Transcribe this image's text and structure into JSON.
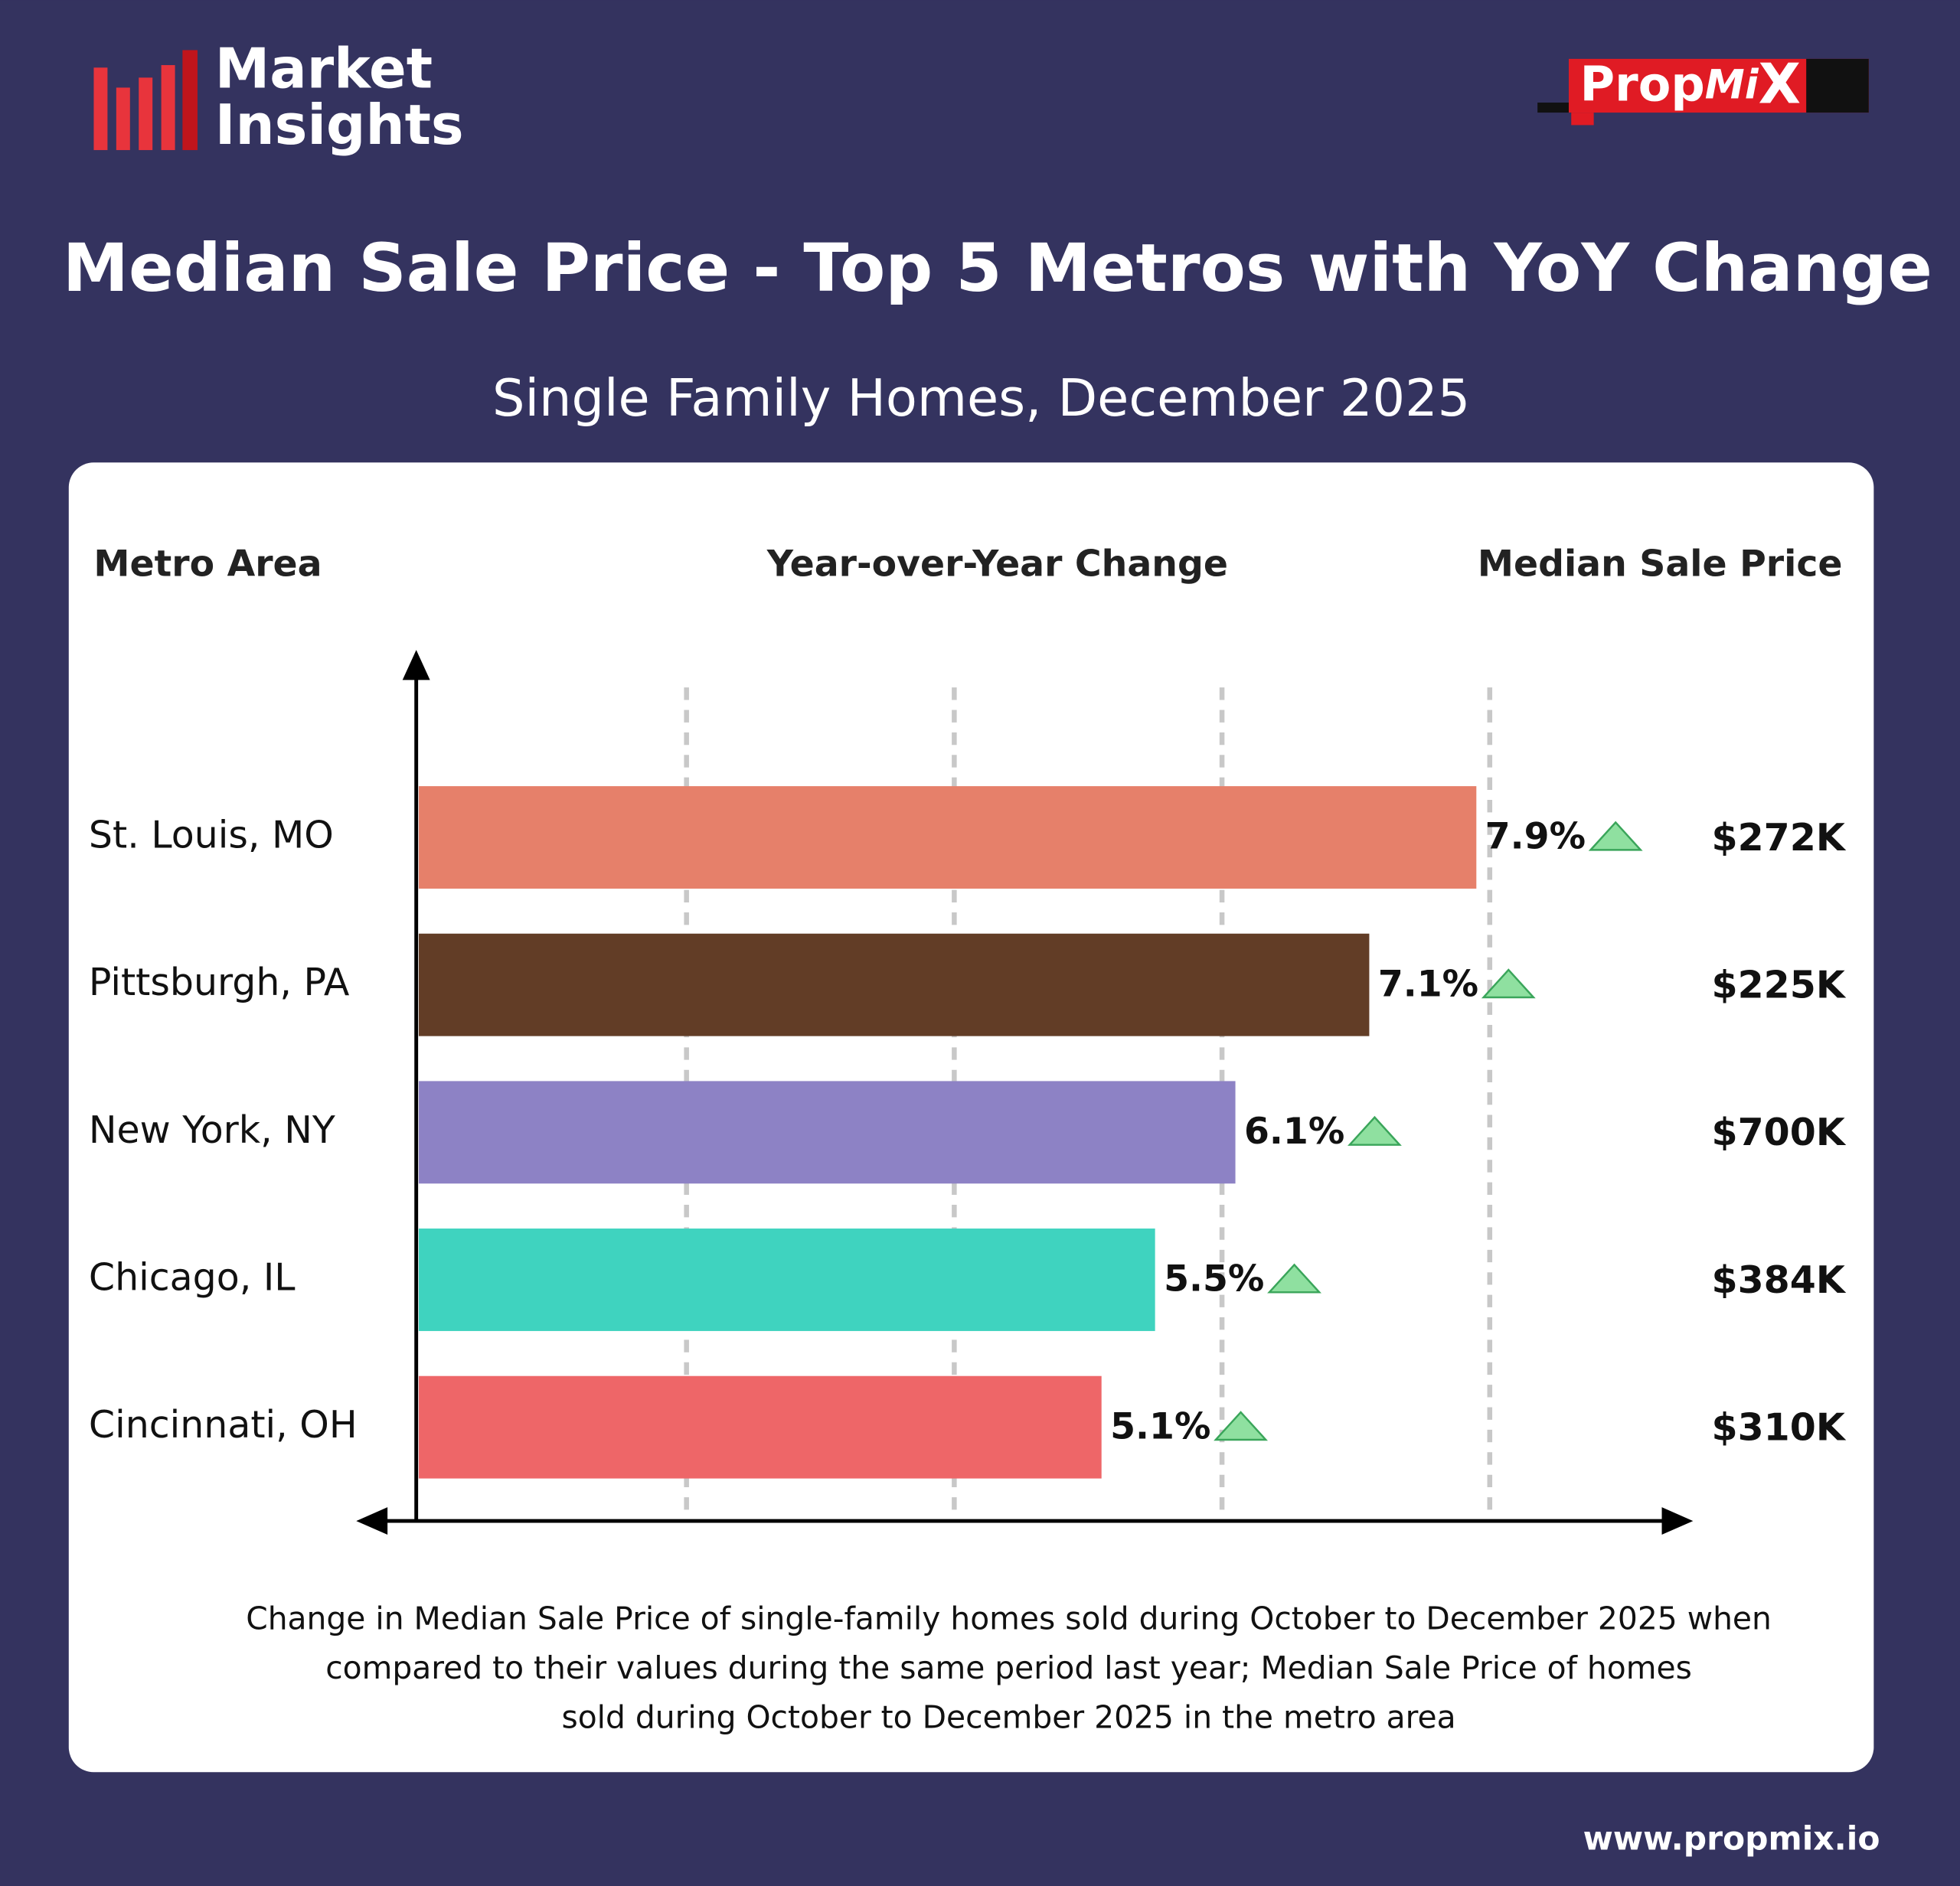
{
  "brand": {
    "title_lines": [
      "Market",
      "Insights"
    ],
    "logo_parts": [
      "Prop",
      "Mi",
      "X"
    ]
  },
  "chart_data": {
    "type": "bar",
    "orientation": "horizontal",
    "title": "Median Sale Price - Top 5 Metros with YoY Change",
    "subtitle": "Single Family Homes, December 2025",
    "column_headers": [
      "Metro Area",
      "Year-over-Year Change",
      "Median Sale Price"
    ],
    "categories": [
      "St. Louis, MO",
      "Pittsburgh, PA",
      "New York, NY",
      "Chicago, IL",
      "Cincinnati, OH"
    ],
    "values": [
      7.9,
      7.1,
      6.1,
      5.5,
      5.1
    ],
    "value_labels": [
      "7.9%",
      "7.1%",
      "6.1%",
      "5.5%",
      "5.1%"
    ],
    "colors": [
      "#e6806a",
      "#623d26",
      "#8d82c5",
      "#3fd3bf",
      "#ee6668"
    ],
    "median_prices": [
      "$272K",
      "$225K",
      "$700K",
      "$384K",
      "$310K"
    ],
    "xlim": [
      0,
      9.5
    ],
    "xgrid": [
      2,
      4,
      6,
      8
    ],
    "note": [
      "Change in Median Sale Price of single-family homes sold during October to December 2025 when",
      "compared to their values during the same period last year; Median Sale Price of homes",
      "sold during October to December 2025 in the metro area"
    ]
  },
  "footer": {
    "url": "www.propmix.io"
  }
}
